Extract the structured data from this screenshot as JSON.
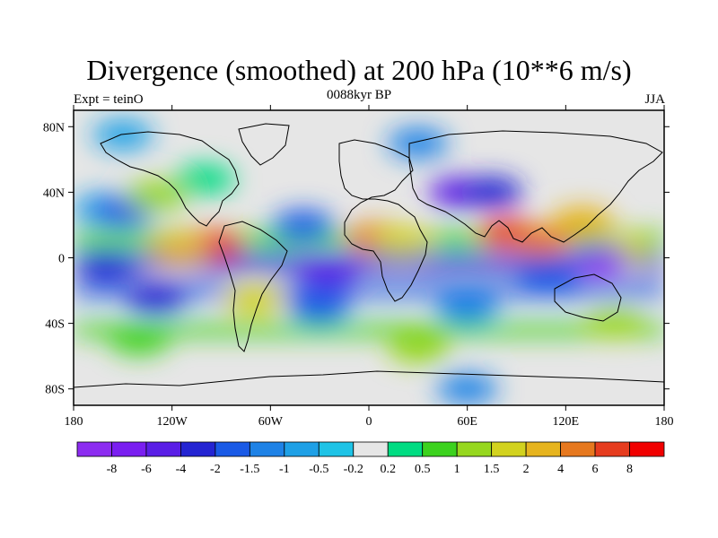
{
  "figure": {
    "title": "Divergence (smoothed) at 200 hPa (10**6 m/s)",
    "subtitle_left": "Expt = teinO",
    "subtitle_center": "0088kyr BP",
    "subtitle_right": "JJA"
  },
  "map": {
    "projection": "cylindrical-equidistant",
    "lon_range": [
      -180,
      180
    ],
    "lat_range": [
      -90,
      90
    ],
    "lat_ticks": [
      {
        "lat": 80,
        "label": "80N"
      },
      {
        "lat": 40,
        "label": "40N"
      },
      {
        "lat": 0,
        "label": "0"
      },
      {
        "lat": -40,
        "label": "40S"
      },
      {
        "lat": -80,
        "label": "80S"
      }
    ],
    "lon_ticks": [
      {
        "lon": -180,
        "label": "180"
      },
      {
        "lon": -120,
        "label": "120W"
      },
      {
        "lon": -60,
        "label": "60W"
      },
      {
        "lon": 0,
        "label": "0"
      },
      {
        "lon": 60,
        "label": "60E"
      },
      {
        "lon": 120,
        "label": "120E"
      },
      {
        "lon": 180,
        "label": "180"
      }
    ],
    "field_features": [
      {
        "lon": -162,
        "lat": 30,
        "level": 6
      },
      {
        "lon": -150,
        "lat": 28,
        "level": 4
      },
      {
        "lon": -130,
        "lat": 38,
        "level": 11
      },
      {
        "lon": -100,
        "lat": 48,
        "level": 9
      },
      {
        "lon": -95,
        "lat": 8,
        "level": 15
      },
      {
        "lon": -115,
        "lat": 5,
        "level": 13
      },
      {
        "lon": -130,
        "lat": -25,
        "level": 3
      },
      {
        "lon": -40,
        "lat": 20,
        "level": 4
      },
      {
        "lon": -25,
        "lat": -8,
        "level": 2
      },
      {
        "lon": -70,
        "lat": -25,
        "level": 12
      },
      {
        "lon": 5,
        "lat": 12,
        "level": 14
      },
      {
        "lon": 20,
        "lat": 10,
        "level": 12
      },
      {
        "lon": 55,
        "lat": 40,
        "level": 2
      },
      {
        "lon": 75,
        "lat": 40,
        "level": 3
      },
      {
        "lon": 85,
        "lat": 15,
        "level": 15
      },
      {
        "lon": 105,
        "lat": 10,
        "level": 14
      },
      {
        "lon": 130,
        "lat": 22,
        "level": 13
      },
      {
        "lon": 155,
        "lat": 5,
        "level": 12
      },
      {
        "lon": 140,
        "lat": -2,
        "level": 1
      },
      {
        "lon": 110,
        "lat": -10,
        "level": 4
      },
      {
        "lon": -160,
        "lat": -5,
        "level": 3
      },
      {
        "lon": -30,
        "lat": -30,
        "level": 4
      },
      {
        "lon": 60,
        "lat": -30,
        "level": 5
      },
      {
        "lon": 150,
        "lat": -40,
        "level": 11
      },
      {
        "lon": -140,
        "lat": -50,
        "level": 10
      },
      {
        "lon": 30,
        "lat": -55,
        "level": 11
      },
      {
        "lon": 60,
        "lat": -80,
        "level": 5
      },
      {
        "lon": -150,
        "lat": 75,
        "level": 6
      },
      {
        "lon": 30,
        "lat": 70,
        "level": 5
      }
    ]
  },
  "colorbar": {
    "colors": [
      "#8c2cf0",
      "#7a1ef0",
      "#5a1ee6",
      "#2424d2",
      "#1a5ae6",
      "#1e82e6",
      "#1ea0e6",
      "#1ec3e6",
      "#e6e6e6",
      "#00dc82",
      "#3cd21e",
      "#96d71e",
      "#d2d21e",
      "#e6b41e",
      "#e6781e",
      "#e63c1e",
      "#f00000"
    ],
    "labels": [
      "-8",
      "-6",
      "-4",
      "-2",
      "-1.5",
      "-1",
      "-0.5",
      "-0.2",
      "0.2",
      "0.5",
      "1",
      "1.5",
      "2",
      "4",
      "6",
      "8"
    ]
  }
}
